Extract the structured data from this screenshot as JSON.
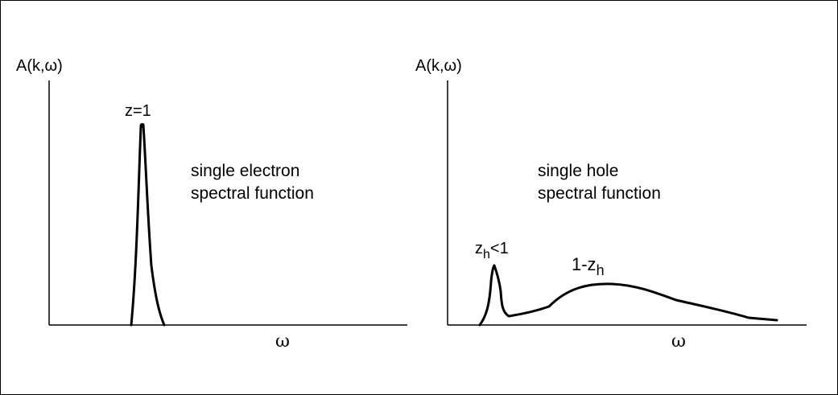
{
  "left_panel": {
    "y_label": "A(k,ω)",
    "x_label": "ω",
    "peak_label": "z=1",
    "description_line1": "single electron",
    "description_line2": "spectral function"
  },
  "right_panel": {
    "y_label": "A(k,ω)",
    "x_label": "ω",
    "peak_label_main": "z",
    "peak_label_sub": "h",
    "peak_label_tail": "<1",
    "broad_label_main": "1-z",
    "broad_label_sub": "h",
    "description_line1": "single hole",
    "description_line2": "spectral function"
  },
  "colors": {
    "ink": "#000000",
    "background": "#ffffff"
  }
}
